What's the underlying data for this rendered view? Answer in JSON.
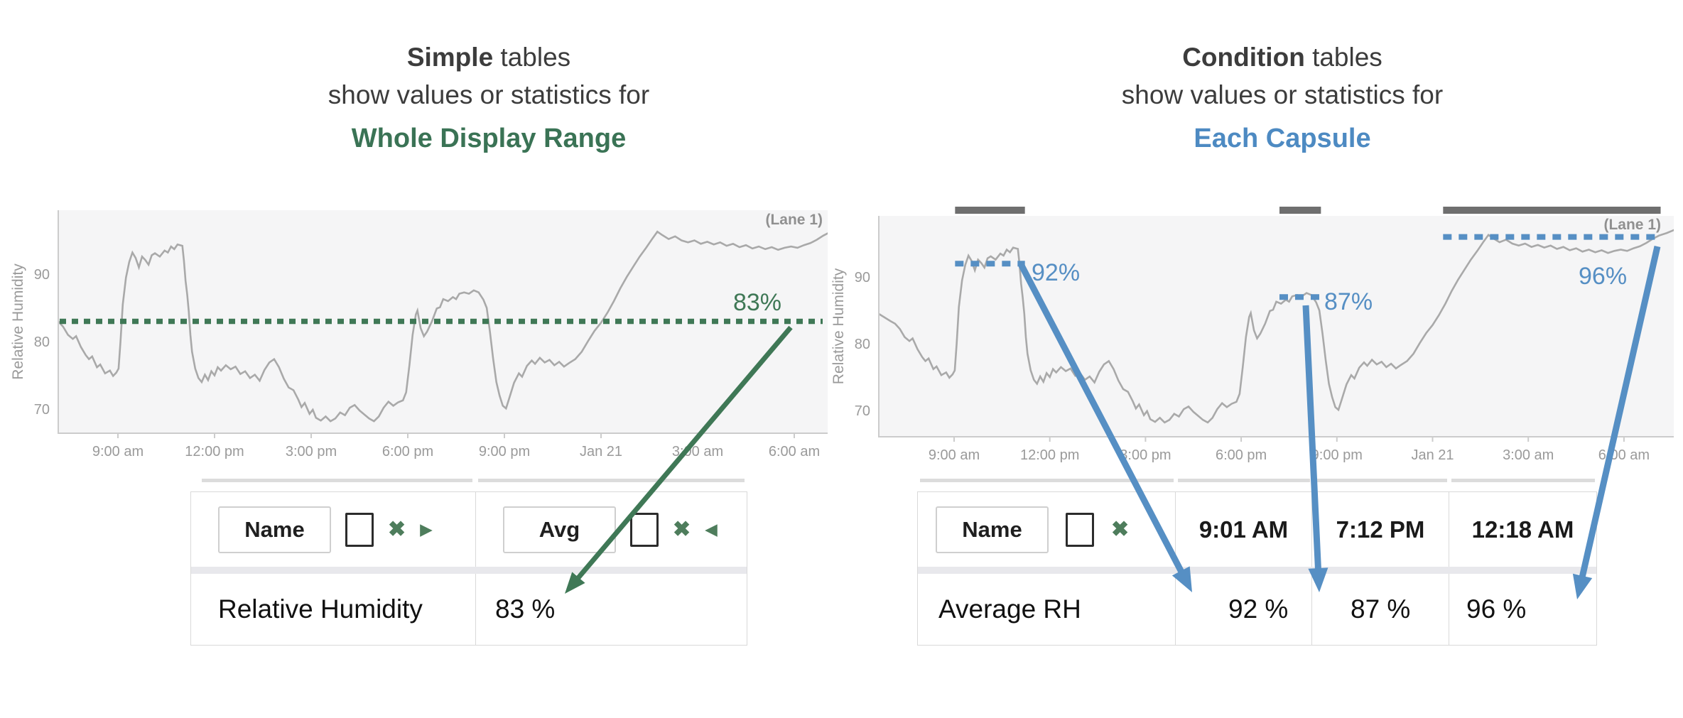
{
  "left_panel": {
    "title": {
      "bold": "Simple",
      "rest": " tables",
      "line2": "show values or statistics for",
      "line3": "Whole Display Range"
    },
    "chart": {
      "lane_label": "(Lane 1)",
      "avg_label": "83%"
    },
    "table": {
      "name_header": "Name",
      "stat_header": "Avg",
      "close_icon": "✖",
      "arrow_right_icon": "▶",
      "arrow_left_icon": "◀",
      "row": {
        "name": "Relative Humidity",
        "value": "83 %"
      }
    }
  },
  "right_panel": {
    "title": {
      "bold": "Condition",
      "rest": " tables",
      "line2": "show values or statistics for",
      "line3": "Each Capsule"
    },
    "chart": {
      "lane_label": "(Lane 1)"
    },
    "table": {
      "name_header": "Name",
      "close_icon": "✖",
      "columns": [
        "9:01 AM",
        "7:12 PM",
        "12:18 AM"
      ],
      "row": {
        "name": "Average RH",
        "values": [
          "92 %",
          "87 %",
          "96 %"
        ]
      }
    }
  },
  "colors": {
    "green_accent": "#3f7856",
    "green_title": "#3a7355",
    "green_icon": "#4e7d5c",
    "blue_accent": "#568fc4",
    "blue_title": "#4d8ac2",
    "signal": "#a9a9a9",
    "capsule_bar": "#6f6f6f",
    "plot_bg": "#f5f5f6",
    "axis": "#cccccc",
    "tick_text": "#9a9a9a",
    "lane_text": "#909090"
  },
  "chart_data": {
    "type": "line",
    "title": "",
    "ylabel": "Relative Humidity",
    "yticks": [
      90,
      80,
      70
    ],
    "xticks": [
      "9:00 am",
      "12:00 pm",
      "3:00 pm",
      "6:00 pm",
      "9:00 pm",
      "Jan 21",
      "3:00 am",
      "6:00 am"
    ],
    "x_hours_per_tick": 3,
    "series_name": "Relative Humidity",
    "left_overlay": {
      "avg_value": 83,
      "avg_label": "83%",
      "stat": "Avg"
    },
    "right_overlay": {
      "capsules": [
        {
          "start_h": 2.03,
          "end_h": 4.22,
          "value": 92,
          "label": "92%",
          "start_time": "9:01 AM"
        },
        {
          "start_h": 12.2,
          "end_h": 13.5,
          "value": 87,
          "label": "87%",
          "start_time": "7:12 PM"
        },
        {
          "start_h": 17.33,
          "end_h": 24.15,
          "value": 96,
          "label": "96%",
          "start_time": "12:18 AM"
        }
      ]
    },
    "points": [
      [
        -0.4,
        84.6
      ],
      [
        -0.2,
        84.0
      ],
      [
        0.0,
        83.4
      ],
      [
        0.15,
        83.0
      ],
      [
        0.3,
        82.2
      ],
      [
        0.45,
        81.0
      ],
      [
        0.6,
        80.4
      ],
      [
        0.7,
        80.8
      ],
      [
        0.85,
        79.2
      ],
      [
        1.0,
        78.0
      ],
      [
        1.1,
        77.4
      ],
      [
        1.2,
        77.8
      ],
      [
        1.35,
        76.2
      ],
      [
        1.45,
        76.6
      ],
      [
        1.6,
        75.3
      ],
      [
        1.75,
        75.7
      ],
      [
        1.85,
        74.9
      ],
      [
        1.95,
        75.4
      ],
      [
        2.02,
        76.0
      ],
      [
        2.08,
        80.0
      ],
      [
        2.15,
        85.5
      ],
      [
        2.25,
        89.5
      ],
      [
        2.35,
        91.8
      ],
      [
        2.45,
        93.2
      ],
      [
        2.55,
        92.4
      ],
      [
        2.65,
        91.0
      ],
      [
        2.75,
        92.6
      ],
      [
        2.85,
        92.1
      ],
      [
        2.95,
        91.4
      ],
      [
        3.05,
        92.8
      ],
      [
        3.15,
        93.1
      ],
      [
        3.3,
        92.6
      ],
      [
        3.45,
        93.5
      ],
      [
        3.55,
        93.2
      ],
      [
        3.65,
        94.1
      ],
      [
        3.75,
        93.7
      ],
      [
        3.85,
        94.4
      ],
      [
        4.0,
        94.2
      ],
      [
        4.05,
        92.0
      ],
      [
        4.1,
        89.0
      ],
      [
        4.15,
        87.0
      ],
      [
        4.2,
        84.5
      ],
      [
        4.25,
        81.0
      ],
      [
        4.3,
        78.5
      ],
      [
        4.4,
        76.0
      ],
      [
        4.5,
        74.6
      ],
      [
        4.6,
        74.0
      ],
      [
        4.7,
        75.1
      ],
      [
        4.8,
        74.3
      ],
      [
        4.9,
        75.6
      ],
      [
        5.0,
        75.0
      ],
      [
        5.1,
        76.2
      ],
      [
        5.2,
        75.7
      ],
      [
        5.35,
        76.5
      ],
      [
        5.5,
        75.9
      ],
      [
        5.65,
        76.3
      ],
      [
        5.8,
        75.2
      ],
      [
        5.95,
        75.6
      ],
      [
        6.1,
        74.6
      ],
      [
        6.25,
        75.1
      ],
      [
        6.4,
        74.2
      ],
      [
        6.55,
        75.8
      ],
      [
        6.7,
        76.9
      ],
      [
        6.85,
        77.4
      ],
      [
        7.0,
        76.2
      ],
      [
        7.15,
        74.5
      ],
      [
        7.3,
        73.2
      ],
      [
        7.45,
        72.8
      ],
      [
        7.6,
        71.4
      ],
      [
        7.7,
        70.3
      ],
      [
        7.8,
        70.9
      ],
      [
        7.95,
        69.3
      ],
      [
        8.05,
        69.9
      ],
      [
        8.15,
        68.7
      ],
      [
        8.3,
        68.3
      ],
      [
        8.45,
        68.9
      ],
      [
        8.6,
        68.2
      ],
      [
        8.75,
        68.6
      ],
      [
        8.9,
        69.5
      ],
      [
        9.05,
        69.1
      ],
      [
        9.2,
        70.2
      ],
      [
        9.35,
        70.6
      ],
      [
        9.5,
        69.8
      ],
      [
        9.65,
        69.2
      ],
      [
        9.8,
        68.6
      ],
      [
        9.95,
        68.2
      ],
      [
        10.1,
        68.9
      ],
      [
        10.25,
        70.2
      ],
      [
        10.4,
        71.1
      ],
      [
        10.55,
        70.5
      ],
      [
        10.7,
        71.0
      ],
      [
        10.85,
        71.3
      ],
      [
        10.95,
        72.5
      ],
      [
        11.05,
        76.5
      ],
      [
        11.15,
        81.0
      ],
      [
        11.25,
        84.0
      ],
      [
        11.3,
        84.6
      ],
      [
        11.4,
        82.0
      ],
      [
        11.5,
        80.8
      ],
      [
        11.6,
        81.5
      ],
      [
        11.75,
        83.0
      ],
      [
        11.9,
        84.9
      ],
      [
        12.0,
        85.1
      ],
      [
        12.1,
        86.3
      ],
      [
        12.25,
        86.0
      ],
      [
        12.4,
        86.6
      ],
      [
        12.5,
        86.3
      ],
      [
        12.6,
        87.1
      ],
      [
        12.75,
        87.3
      ],
      [
        12.9,
        87.1
      ],
      [
        13.05,
        87.6
      ],
      [
        13.2,
        87.3
      ],
      [
        13.35,
        86.2
      ],
      [
        13.45,
        85.0
      ],
      [
        13.55,
        81.5
      ],
      [
        13.65,
        77.5
      ],
      [
        13.75,
        74.0
      ],
      [
        13.85,
        72.0
      ],
      [
        13.95,
        70.5
      ],
      [
        14.05,
        70.1
      ],
      [
        14.15,
        71.6
      ],
      [
        14.3,
        73.9
      ],
      [
        14.45,
        75.3
      ],
      [
        14.55,
        74.8
      ],
      [
        14.7,
        76.4
      ],
      [
        14.85,
        77.2
      ],
      [
        14.95,
        76.7
      ],
      [
        15.1,
        77.6
      ],
      [
        15.25,
        76.9
      ],
      [
        15.4,
        77.3
      ],
      [
        15.55,
        76.5
      ],
      [
        15.7,
        77.0
      ],
      [
        15.85,
        76.3
      ],
      [
        16.0,
        76.8
      ],
      [
        16.2,
        77.4
      ],
      [
        16.4,
        78.5
      ],
      [
        16.6,
        80.1
      ],
      [
        16.8,
        81.6
      ],
      [
        17.0,
        82.8
      ],
      [
        17.2,
        84.3
      ],
      [
        17.4,
        86.0
      ],
      [
        17.6,
        87.9
      ],
      [
        17.8,
        89.6
      ],
      [
        18.0,
        91.1
      ],
      [
        18.2,
        92.6
      ],
      [
        18.4,
        93.9
      ],
      [
        18.6,
        95.3
      ],
      [
        18.75,
        96.3
      ],
      [
        18.9,
        95.8
      ],
      [
        19.1,
        95.2
      ],
      [
        19.3,
        95.6
      ],
      [
        19.5,
        95.0
      ],
      [
        19.7,
        94.7
      ],
      [
        19.9,
        95.0
      ],
      [
        20.1,
        94.5
      ],
      [
        20.3,
        94.8
      ],
      [
        20.5,
        94.4
      ],
      [
        20.7,
        94.7
      ],
      [
        20.9,
        94.2
      ],
      [
        21.1,
        94.5
      ],
      [
        21.3,
        94.0
      ],
      [
        21.5,
        94.3
      ],
      [
        21.7,
        93.8
      ],
      [
        21.9,
        94.1
      ],
      [
        22.1,
        93.7
      ],
      [
        22.3,
        94.0
      ],
      [
        22.5,
        93.6
      ],
      [
        22.7,
        93.9
      ],
      [
        22.9,
        94.1
      ],
      [
        23.1,
        93.9
      ],
      [
        23.3,
        94.3
      ],
      [
        23.5,
        94.6
      ],
      [
        23.7,
        95.1
      ],
      [
        23.9,
        95.7
      ],
      [
        24.1,
        96.2
      ],
      [
        24.35,
        96.6
      ],
      [
        24.6,
        97.1
      ]
    ]
  }
}
